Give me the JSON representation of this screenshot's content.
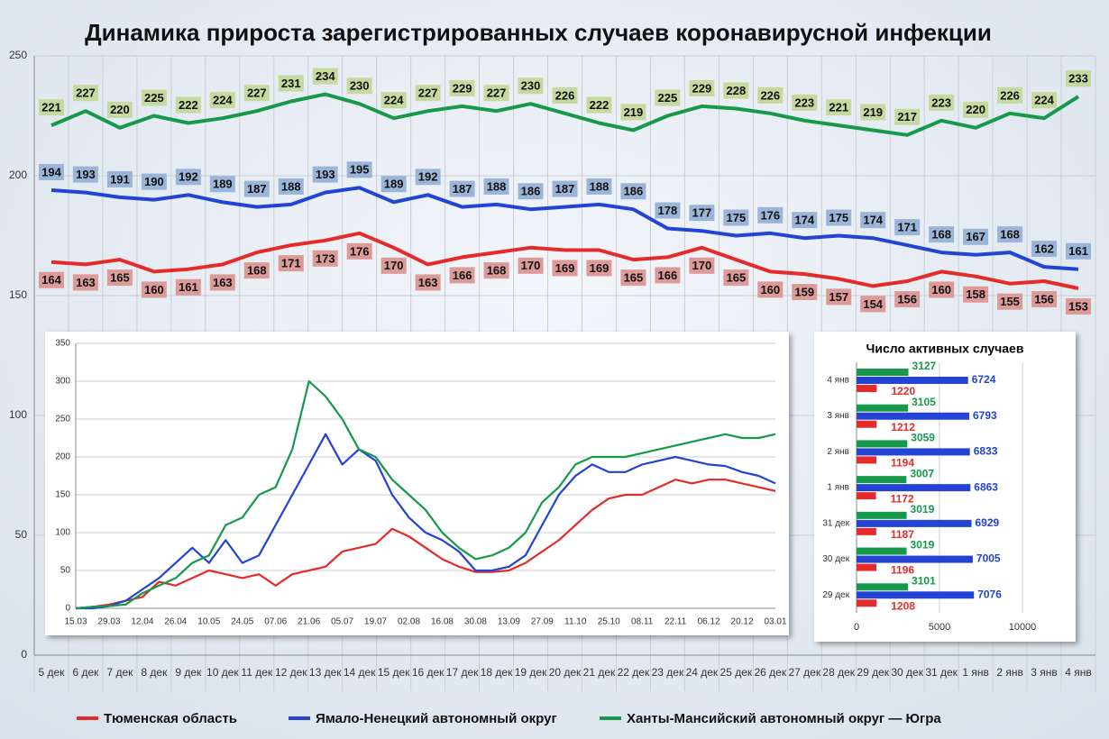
{
  "chart_data": [
    {
      "type": "line",
      "title": "Динамика прироста зарегистрированных случаев коронавирусной инфекции",
      "categories": [
        "5 дек",
        "6 дек",
        "7 дек",
        "8 дек",
        "9 дек",
        "10 дек",
        "11 дек",
        "12 дек",
        "13 дек",
        "14 дек",
        "15 дек",
        "16 дек",
        "17 дек",
        "18 дек",
        "19 дек",
        "20 дек",
        "21 дек",
        "22 дек",
        "23 дек",
        "24 дек",
        "25 дек",
        "26 дек",
        "27 дек",
        "28 дек",
        "29 дек",
        "30 дек",
        "31 дек",
        "1 янв",
        "2 янв",
        "3 янв",
        "4 янв"
      ],
      "series": [
        {
          "name": "Тюменская область",
          "color": "#e52a2a",
          "label_color": "#dc9a98",
          "values": [
            164,
            163,
            165,
            160,
            161,
            163,
            168,
            171,
            173,
            176,
            170,
            163,
            166,
            168,
            170,
            169,
            169,
            165,
            166,
            170,
            165,
            160,
            159,
            157,
            154,
            156,
            160,
            158,
            155,
            156,
            153
          ]
        },
        {
          "name": "Ямало-Ненецкий автономный округ",
          "color": "#2243d4",
          "label_color": "#9ab5d8",
          "values": [
            194,
            193,
            191,
            190,
            192,
            189,
            187,
            188,
            193,
            195,
            189,
            192,
            187,
            188,
            186,
            187,
            188,
            186,
            178,
            177,
            175,
            176,
            174,
            175,
            174,
            171,
            168,
            167,
            168,
            162,
            161
          ]
        },
        {
          "name": "Ханты-Мансийский автономный округ — Югра",
          "color": "#16994a",
          "label_color": "#c5da9f",
          "values": [
            221,
            227,
            220,
            225,
            222,
            224,
            227,
            231,
            234,
            230,
            224,
            227,
            229,
            227,
            230,
            226,
            222,
            219,
            225,
            229,
            228,
            226,
            223,
            221,
            219,
            217,
            223,
            220,
            226,
            224,
            233
          ]
        }
      ],
      "ylim": [
        0,
        250
      ],
      "yticks": [
        0,
        50,
        100,
        150,
        200,
        250
      ],
      "grid": true,
      "legend": "bottom"
    },
    {
      "type": "line",
      "categories": [
        "15.03",
        null,
        "29.03",
        null,
        "12.04",
        null,
        "26.04",
        null,
        "10.05",
        null,
        "24.05",
        null,
        "07.06",
        null,
        "21.06",
        null,
        "05.07",
        null,
        "19.07",
        null,
        "02.08",
        null,
        "16.08",
        null,
        "30.08",
        null,
        "13.09",
        null,
        "27.09",
        null,
        "11.10",
        null,
        "25.10",
        null,
        "08.11",
        null,
        "22.11",
        null,
        "06.12",
        null,
        "20.12",
        null,
        "03.01"
      ],
      "series": [
        {
          "color": "#e52a2a",
          "values": [
            0,
            2,
            5,
            10,
            15,
            35,
            30,
            40,
            50,
            45,
            40,
            45,
            30,
            45,
            50,
            55,
            75,
            80,
            85,
            105,
            95,
            80,
            65,
            55,
            48,
            48,
            50,
            60,
            75,
            90,
            110,
            130,
            145,
            150,
            150,
            160,
            170,
            165,
            170,
            170,
            165,
            160,
            155
          ]
        },
        {
          "color": "#2243d4",
          "values": [
            0,
            0,
            3,
            10,
            25,
            40,
            60,
            80,
            60,
            90,
            60,
            70,
            110,
            150,
            190,
            230,
            190,
            210,
            195,
            150,
            120,
            100,
            90,
            75,
            50,
            50,
            55,
            70,
            110,
            150,
            175,
            190,
            180,
            180,
            190,
            195,
            200,
            195,
            190,
            188,
            180,
            175,
            165
          ]
        },
        {
          "color": "#16994a",
          "values": [
            0,
            2,
            3,
            5,
            20,
            30,
            40,
            60,
            70,
            110,
            120,
            150,
            160,
            210,
            300,
            280,
            250,
            210,
            200,
            170,
            150,
            130,
            100,
            80,
            65,
            70,
            80,
            100,
            140,
            160,
            190,
            200,
            200,
            200,
            205,
            210,
            215,
            220,
            225,
            230,
            225,
            225,
            230
          ]
        }
      ],
      "ylim": [
        0,
        350
      ],
      "yticks": [
        0,
        50,
        100,
        150,
        200,
        250,
        300,
        350
      ],
      "grid": true
    },
    {
      "type": "hbar",
      "title": "Число активных случаев",
      "categories": [
        "4 янв",
        "3 янв",
        "2 янв",
        "1 янв",
        "31 дек",
        "30 дек",
        "29 дек"
      ],
      "series": [
        {
          "color": "#16994a",
          "values": [
            3127,
            3105,
            3059,
            3007,
            3019,
            3019,
            3101
          ]
        },
        {
          "color": "#2243d4",
          "values": [
            6724,
            6793,
            6833,
            6863,
            6929,
            7005,
            7076
          ]
        },
        {
          "color": "#e52a2a",
          "values": [
            1220,
            1212,
            1194,
            1172,
            1187,
            1196,
            1208
          ]
        }
      ],
      "xlim": [
        0,
        10000
      ],
      "xticks": [
        0,
        5000,
        10000
      ],
      "grid": true
    }
  ]
}
